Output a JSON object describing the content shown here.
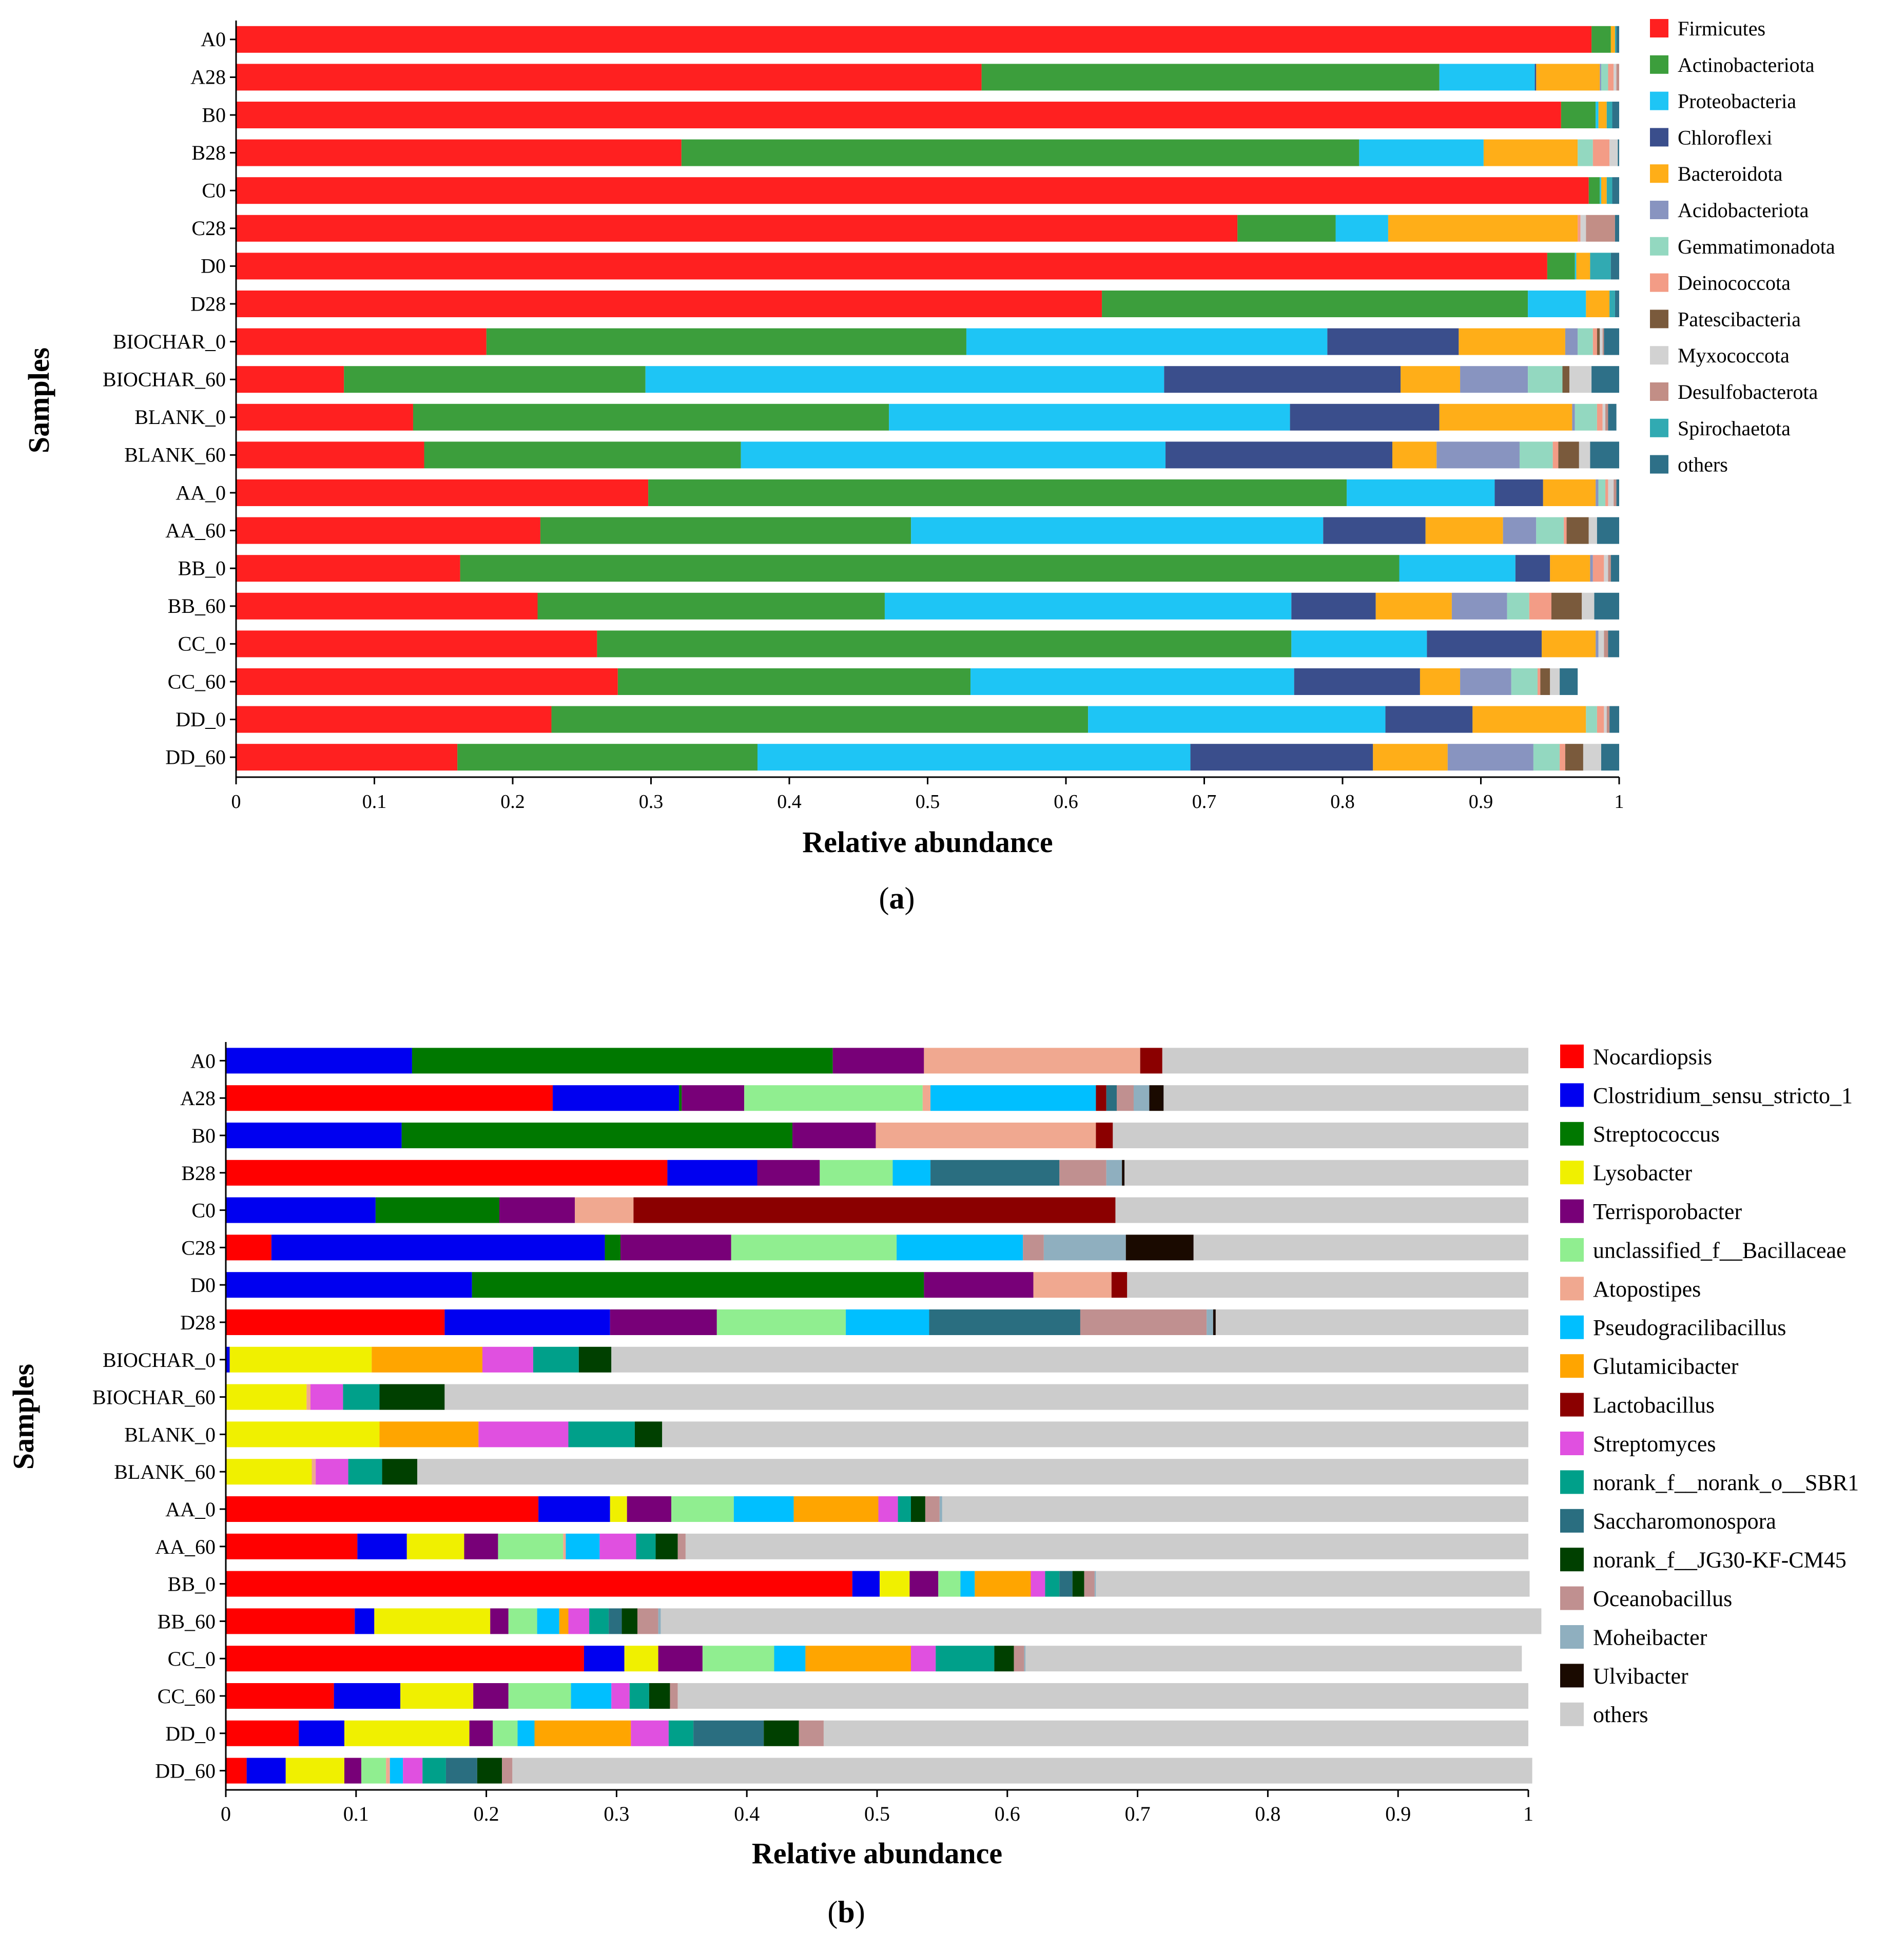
{
  "chart_data": [
    {
      "panel": "(a)",
      "panel_letter": "a",
      "type": "bar",
      "orientation": "horizontal",
      "stacked": true,
      "xlabel": "Relative abundance",
      "ylabel": "Samples",
      "xlim": [
        0,
        1
      ],
      "xticks": [
        "0",
        "0.1",
        "0.2",
        "0.3",
        "0.4",
        "0.5",
        "0.6",
        "0.7",
        "0.8",
        "0.9",
        "1"
      ],
      "legend_position": "right",
      "categories": [
        "A0",
        "A28",
        "B0",
        "B28",
        "C0",
        "C28",
        "D0",
        "D28",
        "BIOCHAR_0",
        "BIOCHAR_60",
        "BLANK_0",
        "BLANK_60",
        "AA_0",
        "AA_60",
        "BB_0",
        "BB_60",
        "CC_0",
        "CC_60",
        "DD_0",
        "DD_60"
      ],
      "series": [
        {
          "name": "Firmicutes",
          "color": "#ff2020",
          "values": [
            0.98,
            0.539,
            0.958,
            0.322,
            0.978,
            0.724,
            0.948,
            0.626,
            0.181,
            0.078,
            0.128,
            0.136,
            0.298,
            0.22,
            0.162,
            0.218,
            0.261,
            0.276,
            0.228,
            0.16
          ]
        },
        {
          "name": "Actinobacteriota",
          "color": "#3c9e3c",
          "values": [
            0.014,
            0.331,
            0.025,
            0.49,
            0.008,
            0.071,
            0.02,
            0.308,
            0.347,
            0.218,
            0.344,
            0.229,
            0.505,
            0.268,
            0.679,
            0.251,
            0.502,
            0.255,
            0.388,
            0.217
          ]
        },
        {
          "name": "Proteobacteria",
          "color": "#1ec5f5",
          "values": [
            0.0,
            0.069,
            0.002,
            0.09,
            0.001,
            0.038,
            0.001,
            0.042,
            0.261,
            0.375,
            0.29,
            0.307,
            0.107,
            0.298,
            0.084,
            0.294,
            0.098,
            0.234,
            0.215,
            0.313
          ]
        },
        {
          "name": "Chloroflexi",
          "color": "#3a4e8c",
          "values": [
            0.0,
            0.001,
            0.0,
            0.0,
            0.0,
            0.0,
            0.0,
            0.0,
            0.095,
            0.171,
            0.108,
            0.164,
            0.035,
            0.074,
            0.025,
            0.061,
            0.083,
            0.091,
            0.063,
            0.132
          ]
        },
        {
          "name": "Bacteroidota",
          "color": "#ffae18",
          "values": [
            0.003,
            0.046,
            0.006,
            0.068,
            0.004,
            0.137,
            0.01,
            0.017,
            0.077,
            0.043,
            0.096,
            0.032,
            0.038,
            0.056,
            0.029,
            0.055,
            0.039,
            0.029,
            0.082,
            0.054
          ]
        },
        {
          "name": "Acidobacteriota",
          "color": "#8894c0",
          "values": [
            0.0,
            0.001,
            0.0,
            0.0,
            0.0,
            0.0,
            0.0,
            0.0,
            0.009,
            0.049,
            0.002,
            0.06,
            0.002,
            0.024,
            0.002,
            0.04,
            0.002,
            0.037,
            0.0,
            0.062
          ]
        },
        {
          "name": "Gemmatimonadota",
          "color": "#93d8c0",
          "values": [
            0.0,
            0.005,
            0.0,
            0.011,
            0.0,
            0.0,
            0.0,
            0.0,
            0.011,
            0.025,
            0.016,
            0.024,
            0.005,
            0.02,
            0.0,
            0.016,
            0.0,
            0.019,
            0.008,
            0.019
          ]
        },
        {
          "name": "Deinococcota",
          "color": "#f39c86",
          "values": [
            0.0,
            0.004,
            0.0,
            0.012,
            0.0,
            0.002,
            0.0,
            0.0,
            0.003,
            0.0,
            0.004,
            0.004,
            0.002,
            0.002,
            0.008,
            0.016,
            0.0,
            0.002,
            0.005,
            0.004
          ]
        },
        {
          "name": "Patescibacteria",
          "color": "#7a5a3c",
          "values": [
            0.0,
            0.0,
            0.0,
            0.0,
            0.0,
            0.0,
            0.0,
            0.0,
            0.002,
            0.005,
            0.0,
            0.015,
            0.0,
            0.016,
            0.0,
            0.022,
            0.0,
            0.007,
            0.0,
            0.013
          ]
        },
        {
          "name": "Myxococcota",
          "color": "#d2d2d2",
          "values": [
            0.0,
            0.002,
            0.0,
            0.006,
            0.0,
            0.004,
            0.0,
            0.0,
            0.002,
            0.016,
            0.002,
            0.008,
            0.004,
            0.006,
            0.003,
            0.009,
            0.004,
            0.007,
            0.002,
            0.013
          ]
        },
        {
          "name": "Desulfobacterota",
          "color": "#c28e86",
          "values": [
            0.0,
            0.002,
            0.0,
            0.0,
            0.0,
            0.021,
            0.0,
            0.0,
            0.001,
            0.0,
            0.002,
            0.0,
            0.002,
            0.0,
            0.002,
            0.0,
            0.003,
            0.0,
            0.002,
            0.0
          ]
        },
        {
          "name": "Spirochaetota",
          "color": "#31aab2",
          "values": [
            0.001,
            0.0,
            0.004,
            0.0,
            0.004,
            0.0,
            0.015,
            0.004,
            0.0,
            0.0,
            0.0,
            0.0,
            0.0,
            0.0,
            0.0,
            0.0,
            0.0,
            0.0,
            0.0,
            0.0
          ]
        },
        {
          "name": "others",
          "color": "#2e7088",
          "values": [
            0.002,
            0.0,
            0.005,
            0.001,
            0.005,
            0.003,
            0.006,
            0.003,
            0.011,
            0.02,
            0.006,
            0.021,
            0.002,
            0.016,
            0.006,
            0.018,
            0.008,
            0.013,
            0.007,
            0.013
          ]
        }
      ]
    },
    {
      "panel": "(b)",
      "panel_letter": "b",
      "type": "bar",
      "orientation": "horizontal",
      "stacked": true,
      "xlabel": "Relative abundance",
      "ylabel": "Samples",
      "xlim": [
        0,
        1
      ],
      "xticks": [
        "0",
        "0.1",
        "0.2",
        "0.3",
        "0.4",
        "0.5",
        "0.6",
        "0.7",
        "0.8",
        "0.9",
        "1"
      ],
      "legend_position": "right",
      "categories": [
        "A0",
        "A28",
        "B0",
        "B28",
        "C0",
        "C28",
        "D0",
        "D28",
        "BIOCHAR_0",
        "BIOCHAR_60",
        "BLANK_0",
        "BLANK_60",
        "AA_0",
        "AA_60",
        "BB_0",
        "BB_60",
        "CC_0",
        "CC_60",
        "DD_0",
        "DD_60"
      ],
      "series": [
        {
          "name": "Nocardiopsis",
          "color": "#ff0000",
          "values": [
            0.0,
            0.251,
            0.0,
            0.339,
            0.0,
            0.035,
            0.0,
            0.168,
            0.0,
            0.0,
            0.0,
            0.0,
            0.24,
            0.101,
            0.481,
            0.099,
            0.275,
            0.083,
            0.056,
            0.016
          ]
        },
        {
          "name": "Clostridium_sensu_stricto_1",
          "color": "#0000f0",
          "values": [
            0.143,
            0.097,
            0.135,
            0.069,
            0.115,
            0.256,
            0.189,
            0.127,
            0.003,
            0.0,
            0.0,
            0.0,
            0.055,
            0.038,
            0.021,
            0.015,
            0.031,
            0.051,
            0.035,
            0.03
          ]
        },
        {
          "name": "Streptococcus",
          "color": "#007800",
          "values": [
            0.323,
            0.002,
            0.3,
            0.0,
            0.095,
            0.012,
            0.347,
            0.0,
            0.0,
            0.0,
            0.0,
            0.0,
            0.0,
            0.0,
            0.0,
            0.0,
            0.0,
            0.0,
            0.0,
            0.0
          ]
        },
        {
          "name": "Lysobacter",
          "color": "#f0f000",
          "values": [
            0.0,
            0.0,
            0.0,
            0.0,
            0.0,
            0.0,
            0.0,
            0.0,
            0.109,
            0.062,
            0.118,
            0.066,
            0.013,
            0.044,
            0.023,
            0.089,
            0.026,
            0.056,
            0.096,
            0.045
          ]
        },
        {
          "name": "Terrisporobacter",
          "color": "#780078",
          "values": [
            0.07,
            0.048,
            0.064,
            0.048,
            0.058,
            0.085,
            0.084,
            0.082,
            0.0,
            0.0,
            0.0,
            0.0,
            0.034,
            0.026,
            0.022,
            0.014,
            0.034,
            0.027,
            0.018,
            0.013
          ]
        },
        {
          "name": "unclassified_f__Bacillaceae",
          "color": "#90ee90",
          "values": [
            0.0,
            0.137,
            0.0,
            0.056,
            0.0,
            0.127,
            0.0,
            0.099,
            0.0,
            0.0,
            0.0,
            0.0,
            0.048,
            0.05,
            0.017,
            0.022,
            0.055,
            0.048,
            0.019,
            0.019
          ]
        },
        {
          "name": "Atopostipes",
          "color": "#f0a890",
          "values": [
            0.166,
            0.006,
            0.169,
            0.0,
            0.045,
            0.0,
            0.06,
            0.0,
            0.0,
            0.003,
            0.0,
            0.003,
            0.0,
            0.002,
            0.0,
            0.0,
            0.0,
            0.0,
            0.0,
            0.003
          ]
        },
        {
          "name": "Pseudogracilibacillus",
          "color": "#00bfff",
          "values": [
            0.0,
            0.127,
            0.0,
            0.029,
            0.0,
            0.097,
            0.0,
            0.064,
            0.0,
            0.0,
            0.0,
            0.0,
            0.046,
            0.026,
            0.011,
            0.017,
            0.024,
            0.031,
            0.013,
            0.01
          ]
        },
        {
          "name": "Glutamicibacter",
          "color": "#ffa500",
          "values": [
            0.0,
            0.0,
            0.0,
            0.0,
            0.0,
            0.0,
            0.0,
            0.0,
            0.085,
            0.0,
            0.076,
            0.0,
            0.065,
            0.0,
            0.043,
            0.007,
            0.081,
            0.0,
            0.074,
            0.0
          ]
        },
        {
          "name": "Lactobacillus",
          "color": "#8b0000",
          "values": [
            0.017,
            0.008,
            0.013,
            0.0,
            0.37,
            0.0,
            0.012,
            0.0,
            0.0,
            0.0,
            0.0,
            0.0,
            0.0,
            0.0,
            0.0,
            0.0,
            0.0,
            0.0,
            0.0,
            0.0
          ]
        },
        {
          "name": "Streptomyces",
          "color": "#e050e0",
          "values": [
            0.0,
            0.0,
            0.0,
            0.0,
            0.0,
            0.0,
            0.0,
            0.0,
            0.039,
            0.025,
            0.069,
            0.025,
            0.015,
            0.028,
            0.011,
            0.016,
            0.019,
            0.014,
            0.029,
            0.015
          ]
        },
        {
          "name": "norank_f__norank_o__SBR1",
          "color": "#00a08a",
          "values": [
            0.0,
            0.0,
            0.0,
            0.0,
            0.0,
            0.0,
            0.0,
            0.0,
            0.035,
            0.028,
            0.051,
            0.026,
            0.01,
            0.015,
            0.011,
            0.015,
            0.045,
            0.015,
            0.019,
            0.018
          ]
        },
        {
          "name": "Saccharomonospora",
          "color": "#2a6e80",
          "values": [
            0.0,
            0.008,
            0.0,
            0.099,
            0.0,
            0.0,
            0.0,
            0.116,
            0.0,
            0.0,
            0.0,
            0.0,
            0.0,
            0.0,
            0.01,
            0.01,
            0.0,
            0.0,
            0.054,
            0.024
          ]
        },
        {
          "name": "norank_f__JG30-KF-CM45",
          "color": "#004000",
          "values": [
            0.0,
            0.0,
            0.0,
            0.0,
            0.0,
            0.0,
            0.0,
            0.0,
            0.025,
            0.05,
            0.021,
            0.027,
            0.011,
            0.017,
            0.009,
            0.012,
            0.015,
            0.016,
            0.027,
            0.019
          ]
        },
        {
          "name": "Oceanobacillus",
          "color": "#c09090",
          "values": [
            0.0,
            0.013,
            0.0,
            0.036,
            0.0,
            0.016,
            0.0,
            0.097,
            0.0,
            0.0,
            0.0,
            0.0,
            0.011,
            0.006,
            0.008,
            0.016,
            0.008,
            0.006,
            0.019,
            0.008
          ]
        },
        {
          "name": "Moheibacter",
          "color": "#8fafbf",
          "values": [
            0.0,
            0.012,
            0.0,
            0.012,
            0.0,
            0.063,
            0.0,
            0.005,
            0.0,
            0.0,
            0.0,
            0.0,
            0.002,
            0.0,
            0.001,
            0.002,
            0.001,
            0.0,
            0.0,
            0.0
          ]
        },
        {
          "name": "Ulvibacter",
          "color": "#1a0a00",
          "values": [
            0.0,
            0.011,
            0.0,
            0.002,
            0.0,
            0.052,
            0.0,
            0.002,
            0.0,
            0.0,
            0.0,
            0.0,
            0.0,
            0.0,
            0.0,
            0.0,
            0.0,
            0.0,
            0.0,
            0.0
          ]
        },
        {
          "name": "others",
          "color": "#cccccc",
          "values": [
            0.281,
            0.28,
            0.319,
            0.31,
            0.317,
            0.257,
            0.308,
            0.24,
            0.704,
            0.832,
            0.665,
            0.853,
            0.45,
            0.647,
            0.333,
            0.676,
            0.381,
            0.653,
            0.541,
            0.783
          ]
        }
      ]
    }
  ]
}
